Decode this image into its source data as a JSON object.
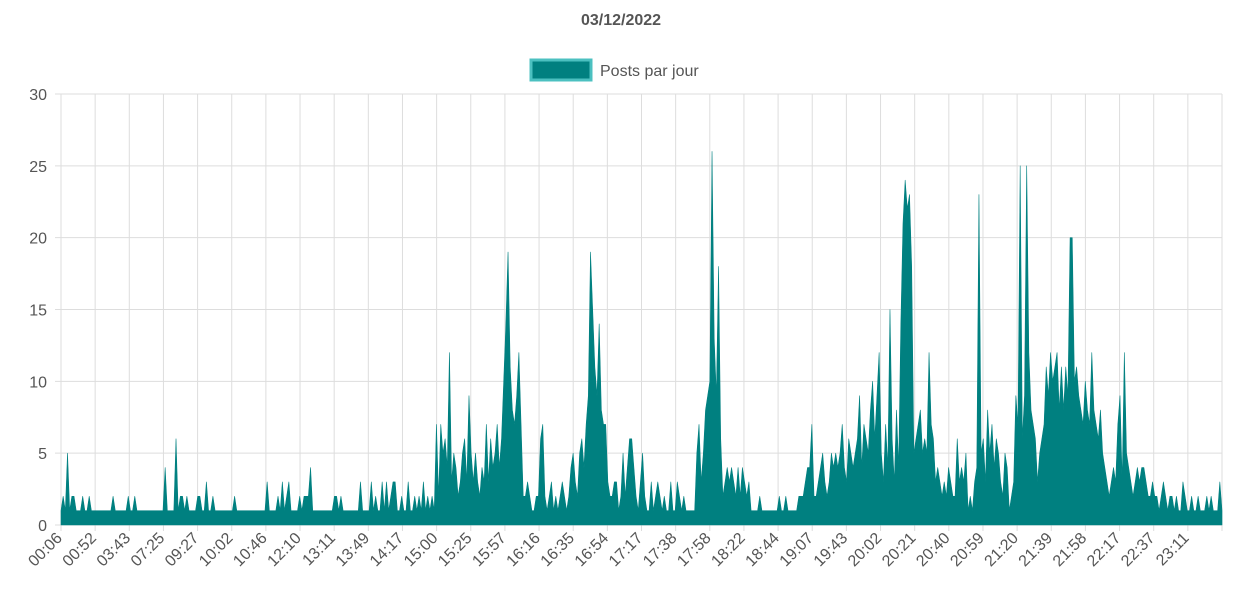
{
  "chart_data": {
    "type": "area",
    "title": "03/12/2022",
    "xlabel": "",
    "ylabel": "",
    "ylim": [
      0,
      30
    ],
    "y_ticks": [
      0,
      5,
      10,
      15,
      20,
      25,
      30
    ],
    "x_tick_labels": [
      "00:06",
      "00:52",
      "03:43",
      "07:25",
      "09:27",
      "10:02",
      "10:46",
      "12:10",
      "13:11",
      "13:49",
      "14:17",
      "15:00",
      "15:25",
      "15:57",
      "16:16",
      "16:35",
      "16:54",
      "17:17",
      "17:38",
      "17:58",
      "18:22",
      "18:44",
      "19:07",
      "19:43",
      "20:02",
      "20:21",
      "20:40",
      "20:59",
      "21:20",
      "21:39",
      "21:58",
      "22:17",
      "22:37",
      "23:11"
    ],
    "grid": true,
    "legend": "top-center",
    "series": [
      {
        "name": "Posts par jour",
        "color": "#008080",
        "border_color": "#4bc0c0",
        "values": [
          1,
          2,
          1,
          5,
          1,
          2,
          2,
          1,
          1,
          1,
          2,
          1,
          1,
          2,
          1,
          1,
          1,
          1,
          1,
          1,
          1,
          1,
          1,
          1,
          2,
          1,
          1,
          1,
          1,
          1,
          1,
          2,
          1,
          1,
          2,
          1,
          1,
          1,
          1,
          1,
          1,
          1,
          1,
          1,
          1,
          1,
          1,
          1,
          4,
          1,
          1,
          1,
          1,
          6,
          1,
          2,
          2,
          1,
          2,
          1,
          1,
          1,
          1,
          2,
          2,
          1,
          1,
          3,
          1,
          1,
          2,
          1,
          1,
          1,
          1,
          1,
          1,
          1,
          1,
          1,
          2,
          1,
          1,
          1,
          1,
          1,
          1,
          1,
          1,
          1,
          1,
          1,
          1,
          1,
          1,
          3,
          1,
          1,
          1,
          1,
          2,
          1,
          3,
          1,
          2,
          3,
          1,
          1,
          1,
          1,
          2,
          1,
          2,
          2,
          2,
          4,
          1,
          1,
          1,
          1,
          1,
          1,
          1,
          1,
          1,
          1,
          2,
          2,
          1,
          2,
          1,
          1,
          1,
          1,
          1,
          1,
          1,
          1,
          3,
          1,
          1,
          1,
          1,
          3,
          1,
          2,
          1,
          1,
          3,
          1,
          3,
          1,
          2,
          3,
          3,
          1,
          1,
          2,
          1,
          1,
          3,
          1,
          1,
          2,
          1,
          2,
          1,
          3,
          1,
          2,
          1,
          2,
          1,
          7,
          2,
          7,
          5,
          6,
          4,
          12,
          3,
          5,
          4,
          2,
          3,
          5,
          6,
          3,
          9,
          5,
          3,
          5,
          3,
          2,
          4,
          3,
          7,
          3,
          6,
          4,
          5,
          7,
          4,
          6,
          10,
          14,
          19,
          11,
          8,
          7,
          9,
          12,
          7,
          2,
          2,
          3,
          2,
          1,
          1,
          2,
          2,
          6,
          7,
          2,
          1,
          2,
          3,
          1,
          2,
          1,
          2,
          3,
          2,
          1,
          2,
          4,
          5,
          3,
          2,
          5,
          6,
          4,
          7,
          9,
          19,
          15,
          11,
          9,
          14,
          8,
          7,
          7,
          3,
          2,
          2,
          3,
          3,
          1,
          2,
          5,
          2,
          4,
          6,
          6,
          4,
          2,
          1,
          3,
          5,
          2,
          1,
          1,
          3,
          1,
          2,
          3,
          2,
          1,
          2,
          1,
          1,
          3,
          1,
          1,
          3,
          2,
          1,
          2,
          1,
          1,
          1,
          1,
          1,
          5,
          7,
          3,
          5,
          8,
          9,
          10,
          26,
          13,
          9,
          18,
          6,
          2,
          3,
          4,
          3,
          4,
          3,
          2,
          4,
          2,
          4,
          3,
          2,
          3,
          1,
          1,
          1,
          1,
          2,
          1,
          1,
          1,
          1,
          1,
          1,
          1,
          1,
          2,
          1,
          1,
          2,
          1,
          1,
          1,
          1,
          1,
          2,
          2,
          2,
          3,
          4,
          4,
          7,
          2,
          2,
          3,
          4,
          5,
          3,
          2,
          3,
          5,
          4,
          5,
          4,
          5,
          7,
          4,
          3,
          6,
          5,
          4,
          5,
          6,
          9,
          4,
          7,
          6,
          5,
          8,
          10,
          6,
          9,
          12,
          5,
          3,
          7,
          4,
          15,
          6,
          3,
          8,
          4,
          14,
          21,
          24,
          22,
          23,
          18,
          5,
          6,
          7,
          8,
          5,
          6,
          5,
          12,
          7,
          6,
          3,
          4,
          3,
          2,
          3,
          2,
          4,
          3,
          2,
          2,
          6,
          3,
          4,
          3,
          5,
          1,
          2,
          1,
          3,
          4,
          23,
          5,
          6,
          3,
          8,
          5,
          7,
          4,
          6,
          5,
          3,
          2,
          5,
          4,
          1,
          2,
          3,
          9,
          7,
          25,
          6,
          9,
          25,
          12,
          8,
          7,
          6,
          3,
          5,
          6,
          7,
          11,
          9,
          12,
          10,
          11,
          12,
          8,
          11,
          8,
          11,
          9,
          20,
          20,
          10,
          11,
          9,
          8,
          7,
          10,
          8,
          7,
          12,
          8,
          7,
          6,
          8,
          5,
          4,
          3,
          2,
          3,
          4,
          3,
          7,
          9,
          3,
          12,
          5,
          4,
          3,
          2,
          3,
          4,
          3,
          4,
          4,
          3,
          2,
          2,
          3,
          2,
          2,
          1,
          2,
          3,
          2,
          1,
          2,
          2,
          1,
          2,
          1,
          1,
          3,
          2,
          1,
          1,
          2,
          1,
          1,
          2,
          1,
          1,
          1,
          2,
          1,
          2,
          1,
          1,
          1,
          3,
          1
        ]
      }
    ]
  }
}
